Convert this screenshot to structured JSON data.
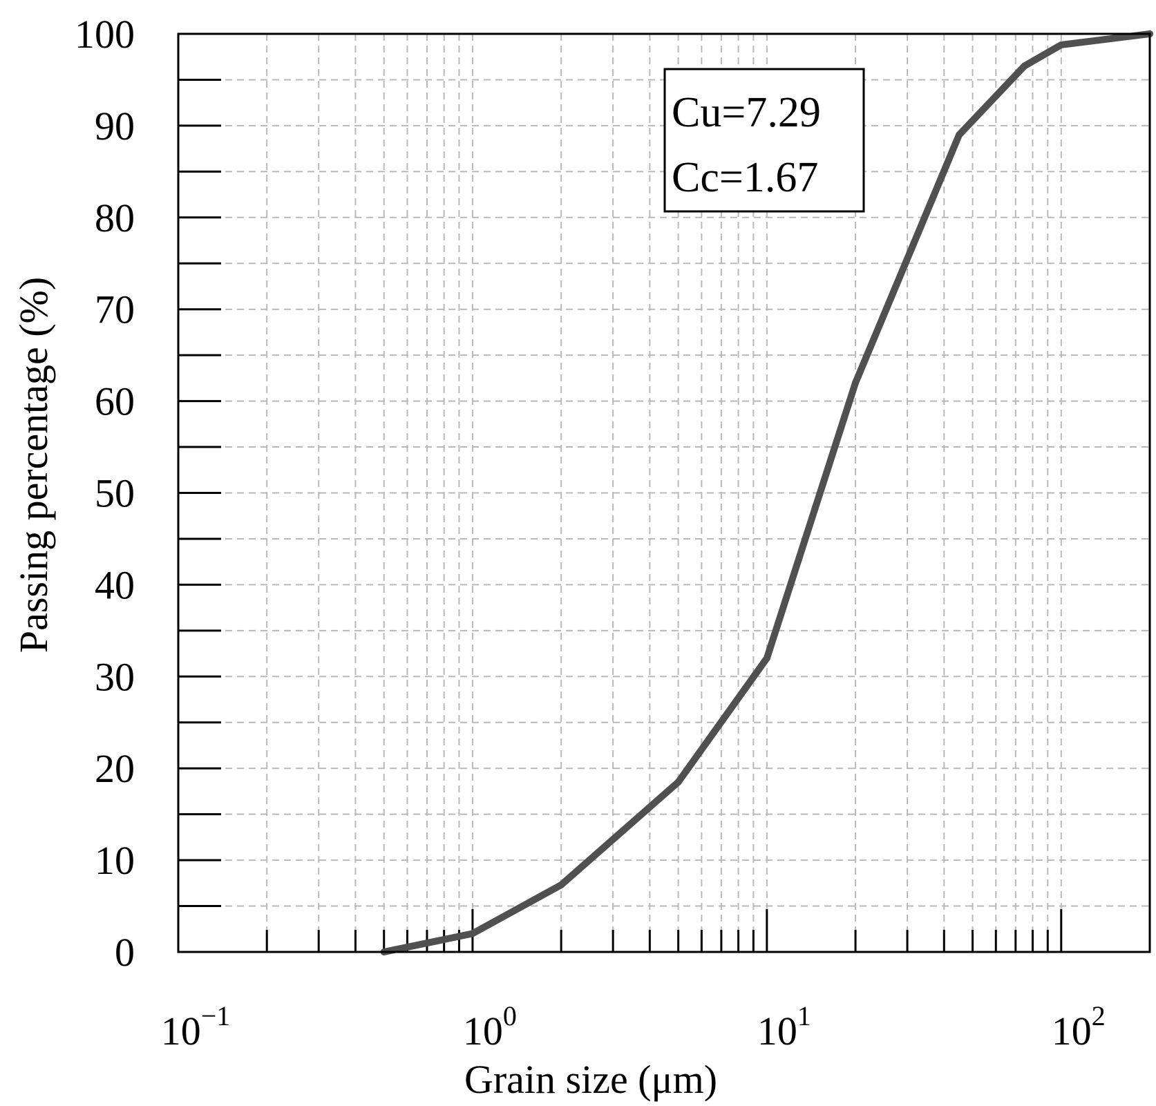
{
  "chart_data": {
    "type": "line",
    "xlabel": "Grain size (μm)",
    "ylabel": "Passing percentage (%)",
    "xscale": "log",
    "xlim": [
      0.1,
      200
    ],
    "ylim": [
      0,
      100
    ],
    "grid": true,
    "x_ticks": [
      {
        "base": "10",
        "exp": "−1"
      },
      {
        "base": "10",
        "exp": "0"
      },
      {
        "base": "10",
        "exp": "1"
      },
      {
        "base": "10",
        "exp": "2"
      }
    ],
    "y_ticks": [
      "0",
      "10",
      "20",
      "30",
      "40",
      "50",
      "60",
      "70",
      "80",
      "90",
      "100"
    ],
    "series": [
      {
        "color": "#505050",
        "x": [
          0.5,
          1,
          2,
          5,
          10,
          20,
          45,
          75,
          100,
          200
        ],
        "y": [
          0,
          2,
          7.3,
          18.5,
          32,
          62,
          89,
          96.5,
          98.8,
          100
        ]
      }
    ],
    "annotations": [
      {
        "text": "Cu=7.29"
      },
      {
        "text": "Cc=1.67"
      }
    ]
  }
}
